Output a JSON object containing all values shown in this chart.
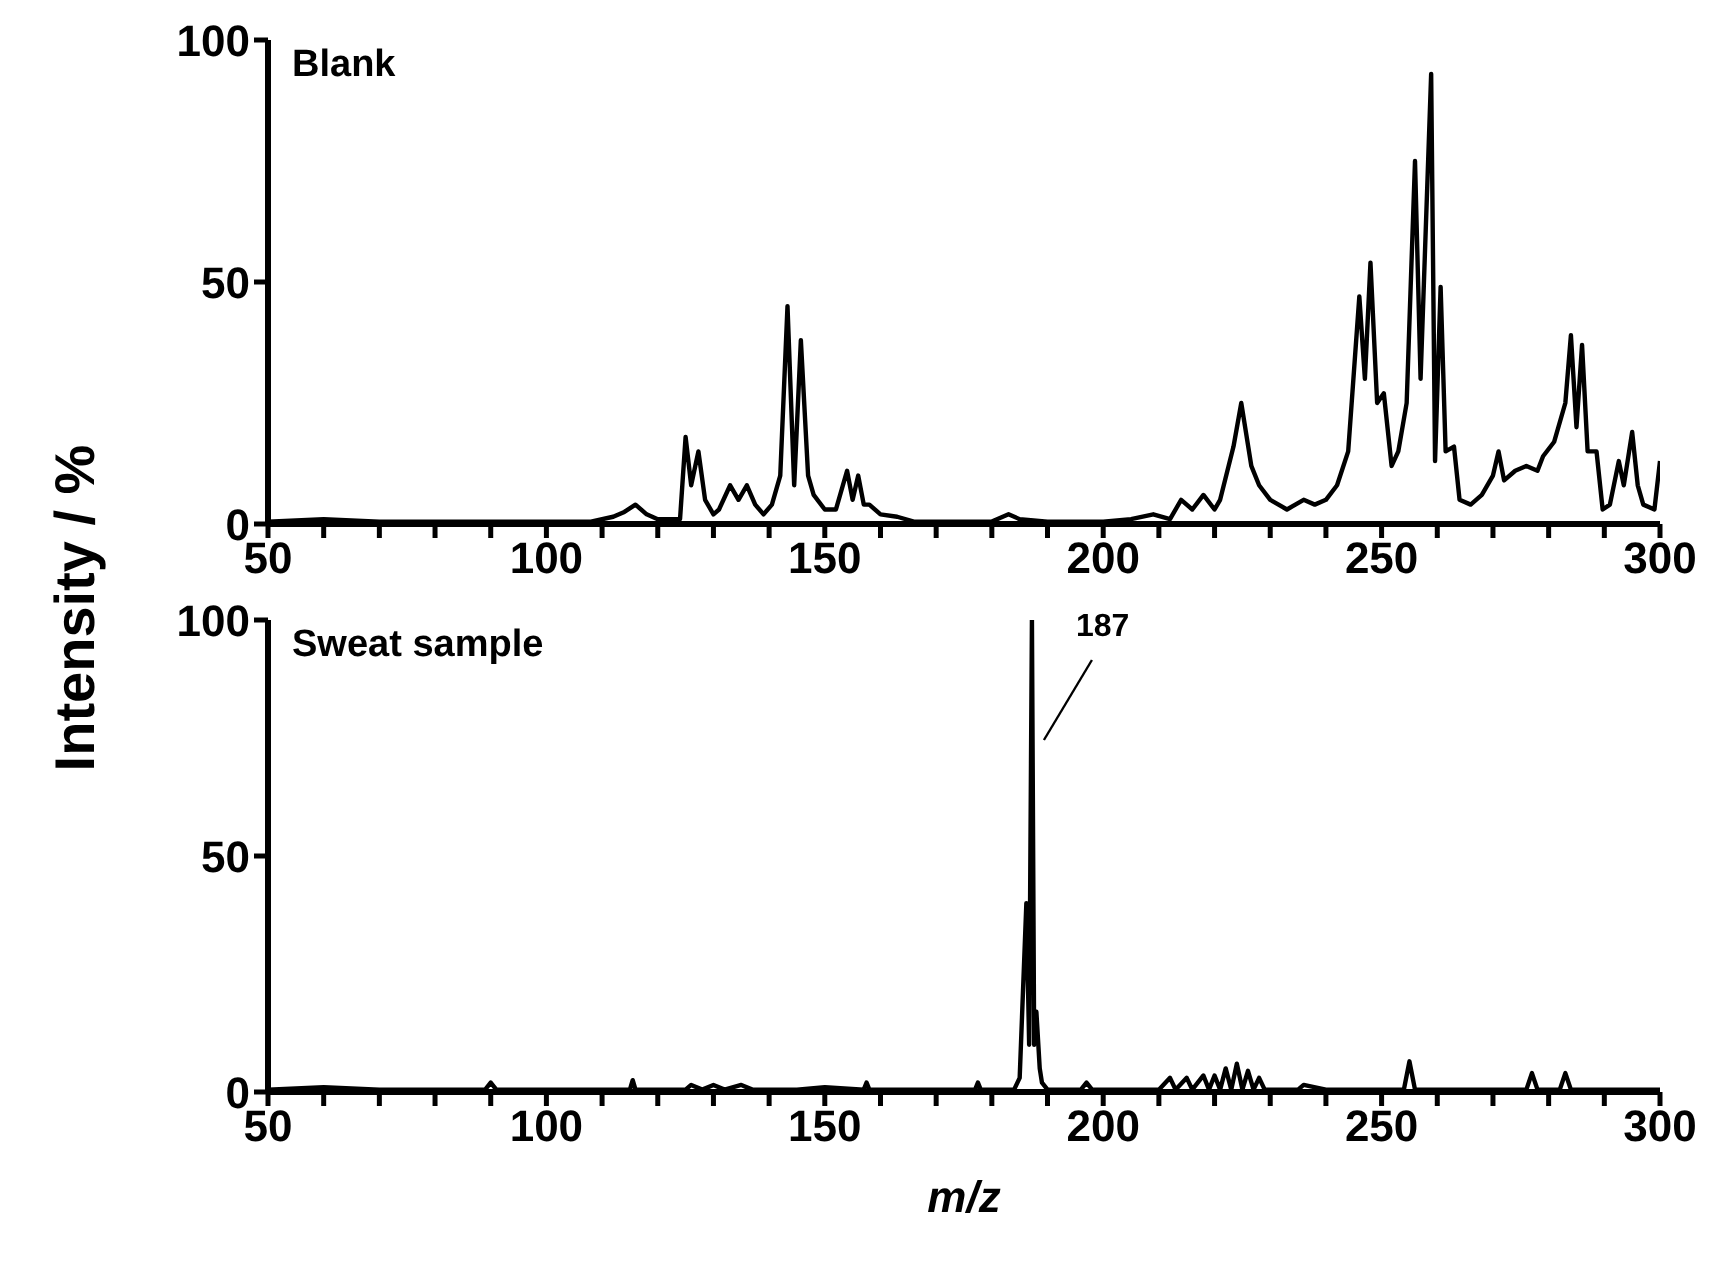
{
  "chart_data": [
    {
      "type": "line",
      "title": "Blank",
      "ylabel": "Intensity / %",
      "xlim": [
        50,
        300
      ],
      "ylim": [
        0,
        100
      ],
      "xticks": [
        50,
        {
          "value": 60,
          "label": null
        },
        {
          "value": 70,
          "label": null
        },
        {
          "value": 80,
          "label": null
        },
        {
          "value": 90,
          "label": null
        },
        100,
        {
          "value": 110,
          "label": null
        },
        {
          "value": 120,
          "label": null
        },
        {
          "value": 130,
          "label": null
        },
        {
          "value": 140,
          "label": null
        },
        150,
        {
          "value": 160,
          "label": null
        },
        {
          "value": 170,
          "label": null
        },
        {
          "value": 180,
          "label": null
        },
        {
          "value": 190,
          "label": null
        },
        200,
        {
          "value": 210,
          "label": null
        },
        {
          "value": 220,
          "label": null
        },
        {
          "value": 230,
          "label": null
        },
        {
          "value": 240,
          "label": null
        },
        250,
        {
          "value": 260,
          "label": null
        },
        {
          "value": 270,
          "label": null
        },
        {
          "value": 280,
          "label": null
        },
        {
          "value": 290,
          "label": null
        },
        300
      ],
      "yticks": [
        0,
        50,
        100
      ],
      "marker": "none",
      "series": [
        {
          "color": "#000000",
          "x": [
            50,
            60,
            70,
            80,
            90,
            100,
            108,
            112,
            114,
            116,
            118,
            120,
            124,
            125,
            126,
            127.3,
            128.5,
            130,
            131,
            133,
            134.5,
            136,
            137.5,
            139,
            140.5,
            142,
            143.3,
            144.5,
            145.7,
            147,
            148,
            150,
            152,
            154,
            155,
            156,
            157,
            158,
            160,
            163,
            166,
            170,
            175,
            180,
            183,
            185,
            190,
            195,
            200,
            205,
            209,
            212,
            214,
            216,
            218,
            220,
            221,
            223.4,
            224.8,
            226.6,
            228,
            230,
            233,
            236,
            238,
            240,
            242,
            244,
            246,
            247,
            248,
            249.2,
            250.4,
            251.8,
            253,
            254.5,
            256,
            257,
            258.9,
            259.6,
            260.6,
            261.5,
            263,
            264,
            266,
            268,
            270,
            271,
            272,
            274,
            276,
            278,
            279,
            281,
            283,
            284,
            285,
            286,
            287,
            288.6,
            289.7,
            291,
            292.6,
            293.5,
            295,
            296,
            297,
            299,
            300
          ],
          "values": [
            0.5,
            1,
            0.5,
            0.5,
            0.5,
            0.5,
            0.5,
            1.5,
            2.5,
            4,
            2,
            1,
            1,
            18,
            8,
            15,
            5,
            2,
            3,
            8,
            5,
            8,
            4,
            2,
            4,
            10,
            45,
            8,
            38,
            10,
            6,
            3,
            3,
            11,
            5,
            10,
            4,
            4,
            2,
            1.5,
            0.5,
            0.5,
            0.5,
            0.5,
            2,
            1,
            0.5,
            0.5,
            0.5,
            1,
            2,
            1,
            5,
            3,
            6,
            3,
            5,
            16,
            25,
            12,
            8,
            5,
            3,
            5,
            4,
            5,
            8,
            15,
            47,
            30,
            54,
            25,
            27,
            12,
            15,
            25,
            75,
            30,
            93,
            13,
            49,
            15,
            16,
            5,
            4,
            6,
            10,
            15,
            9,
            11,
            12,
            11,
            14,
            17,
            25,
            39,
            20,
            37,
            15,
            15,
            3,
            4,
            13,
            8,
            19,
            8,
            4,
            3,
            13
          ]
        }
      ]
    },
    {
      "type": "line",
      "title": "Sweat sample",
      "xlabel": "m/z",
      "xlim": [
        50,
        300
      ],
      "ylim": [
        0,
        100
      ],
      "xticks": [
        50,
        {
          "value": 60,
          "label": null
        },
        {
          "value": 70,
          "label": null
        },
        {
          "value": 80,
          "label": null
        },
        {
          "value": 90,
          "label": null
        },
        100,
        {
          "value": 110,
          "label": null
        },
        {
          "value": 120,
          "label": null
        },
        {
          "value": 130,
          "label": null
        },
        {
          "value": 140,
          "label": null
        },
        150,
        {
          "value": 160,
          "label": null
        },
        {
          "value": 170,
          "label": null
        },
        {
          "value": 180,
          "label": null
        },
        {
          "value": 190,
          "label": null
        },
        200,
        {
          "value": 210,
          "label": null
        },
        {
          "value": 220,
          "label": null
        },
        {
          "value": 230,
          "label": null
        },
        {
          "value": 240,
          "label": null
        },
        250,
        {
          "value": 260,
          "label": null
        },
        {
          "value": 270,
          "label": null
        },
        {
          "value": 280,
          "label": null
        },
        {
          "value": 290,
          "label": null
        },
        300
      ],
      "yticks": [
        0,
        50,
        100
      ],
      "marker": "none",
      "annotations": [
        {
          "text": "187",
          "x": 187.2,
          "y": 100
        }
      ],
      "series": [
        {
          "color": "#000000",
          "x": [
            50,
            60,
            70,
            80,
            89,
            90,
            91,
            100,
            110,
            115,
            115.5,
            116,
            125,
            126,
            128,
            130,
            132,
            135,
            137,
            145,
            150,
            157,
            157.5,
            158,
            170,
            177,
            177.5,
            178,
            184,
            185,
            186.2,
            186.7,
            187.2,
            187.6,
            188,
            188.6,
            189,
            190,
            196,
            197,
            198,
            210,
            212,
            213,
            215,
            216,
            218,
            219,
            220,
            221,
            222,
            223,
            224,
            225,
            226,
            227,
            228,
            229,
            235,
            236,
            240,
            245,
            254,
            255,
            256,
            266,
            276,
            277,
            278,
            282,
            283,
            284,
            290,
            300
          ],
          "values": [
            0.5,
            1,
            0.5,
            0.5,
            0.5,
            2,
            0.5,
            0.5,
            0.5,
            0.5,
            2.5,
            0.5,
            0.5,
            1.5,
            0.5,
            1.5,
            0.5,
            1.5,
            0.5,
            0.5,
            1,
            0.5,
            2,
            0.5,
            0.5,
            0.5,
            2,
            0.5,
            0.5,
            3,
            40,
            10,
            100,
            10,
            17,
            5,
            2,
            0.5,
            0.5,
            2,
            0.5,
            0.5,
            3,
            0.5,
            3,
            0.5,
            3.5,
            0.5,
            3.5,
            0.5,
            5,
            0.5,
            6,
            0.5,
            4.5,
            0.5,
            3,
            0.5,
            0.5,
            1.5,
            0.5,
            0.5,
            0.5,
            6.5,
            0.5,
            0.5,
            0.5,
            4,
            0.5,
            0.5,
            4,
            0.5,
            0.5,
            0.5
          ]
        }
      ]
    }
  ]
}
